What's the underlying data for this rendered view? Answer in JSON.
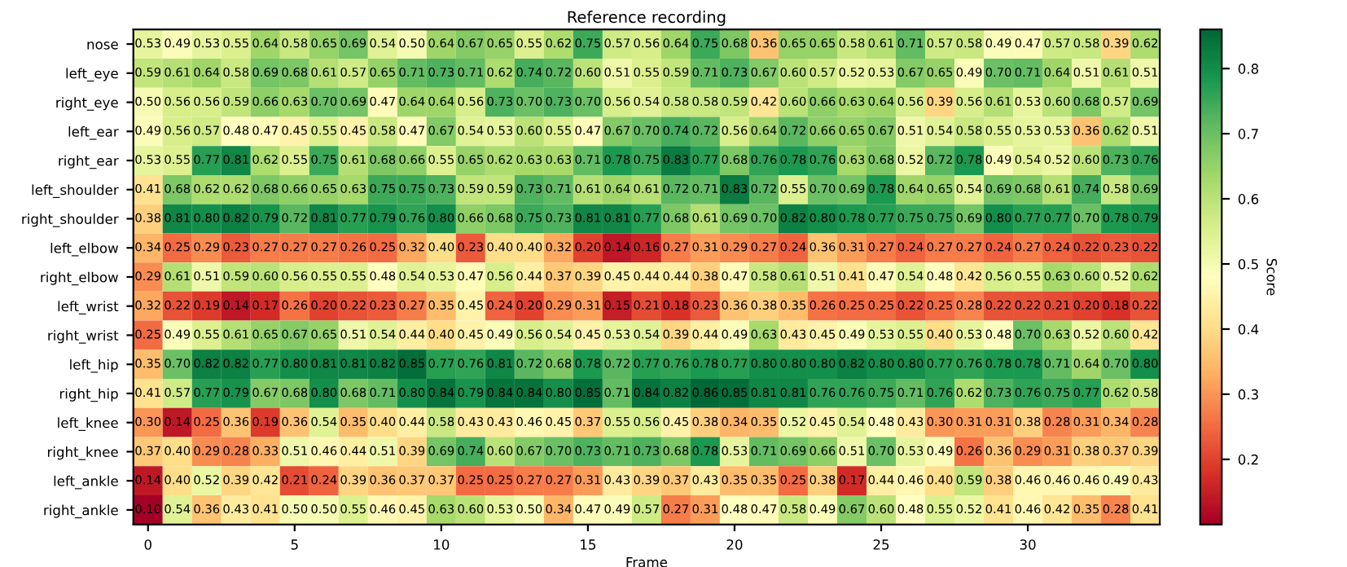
{
  "chart_data": {
    "type": "heatmap",
    "title": "Reference recording",
    "xlabel": "Frame",
    "clabel": "Score",
    "categories": [
      "0",
      null,
      null,
      null,
      null,
      "5",
      null,
      null,
      null,
      null,
      "10",
      null,
      null,
      null,
      null,
      "15",
      null,
      null,
      null,
      null,
      "20",
      null,
      null,
      null,
      null,
      "25",
      null,
      null,
      null,
      null,
      "30",
      null,
      null,
      null,
      null
    ],
    "y_categories": [
      "nose",
      "left_eye",
      "right_eye",
      "left_ear",
      "right_ear",
      "left_shoulder",
      "right_shoulder",
      "left_elbow",
      "right_elbow",
      "left_wrist",
      "right_wrist",
      "left_hip",
      "right_hip",
      "left_knee",
      "right_knee",
      "left_ankle",
      "right_ankle"
    ],
    "cells": [
      [
        0.53,
        0.49,
        0.53,
        0.55,
        0.64,
        0.58,
        0.65,
        0.69,
        0.54,
        0.5,
        0.64,
        0.67,
        0.65,
        0.55,
        0.62,
        0.75,
        0.57,
        0.56,
        0.64,
        0.75,
        0.68,
        0.36,
        0.65,
        0.65,
        0.58,
        0.61,
        0.71,
        0.57,
        0.58,
        0.49,
        0.47,
        0.57,
        0.58,
        0.39,
        0.62
      ],
      [
        0.59,
        0.61,
        0.64,
        0.58,
        0.69,
        0.68,
        0.61,
        0.57,
        0.65,
        0.71,
        0.73,
        0.71,
        0.62,
        0.74,
        0.72,
        0.6,
        0.51,
        0.55,
        0.59,
        0.71,
        0.73,
        0.67,
        0.6,
        0.57,
        0.52,
        0.53,
        0.67,
        0.65,
        0.49,
        0.7,
        0.71,
        0.64,
        0.51,
        0.61,
        0.51
      ],
      [
        0.5,
        0.56,
        0.56,
        0.59,
        0.66,
        0.63,
        0.7,
        0.69,
        0.47,
        0.64,
        0.64,
        0.56,
        0.73,
        0.7,
        0.73,
        0.7,
        0.56,
        0.54,
        0.58,
        0.58,
        0.59,
        0.42,
        0.6,
        0.66,
        0.63,
        0.64,
        0.56,
        0.39,
        0.56,
        0.61,
        0.53,
        0.6,
        0.68,
        0.57,
        0.69
      ],
      [
        0.49,
        0.56,
        0.57,
        0.48,
        0.47,
        0.45,
        0.55,
        0.45,
        0.58,
        0.47,
        0.67,
        0.54,
        0.53,
        0.6,
        0.55,
        0.47,
        0.67,
        0.7,
        0.74,
        0.72,
        0.56,
        0.64,
        0.72,
        0.66,
        0.65,
        0.67,
        0.51,
        0.54,
        0.58,
        0.55,
        0.53,
        0.53,
        0.36,
        0.62,
        0.51
      ],
      [
        0.53,
        0.55,
        0.77,
        0.81,
        0.62,
        0.55,
        0.75,
        0.61,
        0.68,
        0.66,
        0.55,
        0.65,
        0.62,
        0.63,
        0.63,
        0.71,
        0.78,
        0.75,
        0.83,
        0.77,
        0.68,
        0.76,
        0.78,
        0.76,
        0.63,
        0.68,
        0.52,
        0.72,
        0.78,
        0.49,
        0.54,
        0.52,
        0.6,
        0.73,
        0.76
      ],
      [
        0.41,
        0.68,
        0.62,
        0.62,
        0.68,
        0.66,
        0.65,
        0.63,
        0.75,
        0.75,
        0.73,
        0.59,
        0.59,
        0.73,
        0.71,
        0.61,
        0.64,
        0.61,
        0.72,
        0.71,
        0.83,
        0.72,
        0.55,
        0.7,
        0.69,
        0.78,
        0.64,
        0.65,
        0.54,
        0.69,
        0.68,
        0.61,
        0.74,
        0.58,
        0.69
      ],
      [
        0.38,
        0.81,
        0.8,
        0.82,
        0.79,
        0.72,
        0.81,
        0.77,
        0.79,
        0.76,
        0.8,
        0.66,
        0.68,
        0.75,
        0.73,
        0.81,
        0.81,
        0.77,
        0.68,
        0.61,
        0.69,
        0.7,
        0.82,
        0.8,
        0.78,
        0.77,
        0.75,
        0.75,
        0.69,
        0.8,
        0.77,
        0.77,
        0.7,
        0.78,
        0.79
      ],
      [
        0.34,
        0.25,
        0.29,
        0.23,
        0.27,
        0.27,
        0.27,
        0.26,
        0.25,
        0.32,
        0.4,
        0.23,
        0.4,
        0.4,
        0.32,
        0.2,
        0.14,
        0.16,
        0.27,
        0.31,
        0.29,
        0.27,
        0.24,
        0.36,
        0.31,
        0.27,
        0.24,
        0.27,
        0.27,
        0.24,
        0.27,
        0.24,
        0.22,
        0.23,
        0.22
      ],
      [
        0.29,
        0.61,
        0.51,
        0.59,
        0.6,
        0.56,
        0.55,
        0.55,
        0.48,
        0.54,
        0.53,
        0.47,
        0.56,
        0.44,
        0.37,
        0.39,
        0.45,
        0.44,
        0.44,
        0.38,
        0.47,
        0.58,
        0.61,
        0.51,
        0.41,
        0.47,
        0.54,
        0.48,
        0.42,
        0.56,
        0.55,
        0.63,
        0.6,
        0.52,
        0.62
      ],
      [
        0.32,
        0.22,
        0.19,
        0.14,
        0.17,
        0.26,
        0.2,
        0.22,
        0.23,
        0.27,
        0.35,
        0.45,
        0.24,
        0.2,
        0.29,
        0.31,
        0.15,
        0.21,
        0.18,
        0.23,
        0.36,
        0.38,
        0.35,
        0.26,
        0.25,
        0.25,
        0.22,
        0.25,
        0.28,
        0.22,
        0.22,
        0.21,
        0.2,
        0.18,
        0.22
      ],
      [
        0.25,
        0.49,
        0.55,
        0.61,
        0.65,
        0.67,
        0.65,
        0.51,
        0.54,
        0.44,
        0.4,
        0.45,
        0.49,
        0.56,
        0.54,
        0.45,
        0.53,
        0.54,
        0.39,
        0.44,
        0.49,
        0.63,
        0.43,
        0.45,
        0.49,
        0.53,
        0.55,
        0.4,
        0.53,
        0.48,
        0.7,
        0.63,
        0.52,
        0.6,
        0.42
      ],
      [
        0.35,
        0.7,
        0.82,
        0.82,
        0.77,
        0.8,
        0.81,
        0.81,
        0.82,
        0.85,
        0.77,
        0.76,
        0.81,
        0.72,
        0.68,
        0.78,
        0.72,
        0.77,
        0.76,
        0.78,
        0.77,
        0.8,
        0.8,
        0.8,
        0.82,
        0.8,
        0.8,
        0.77,
        0.76,
        0.78,
        0.78,
        0.71,
        0.64,
        0.7,
        0.8
      ],
      [
        0.41,
        0.57,
        0.77,
        0.79,
        0.67,
        0.68,
        0.8,
        0.68,
        0.71,
        0.8,
        0.84,
        0.79,
        0.84,
        0.84,
        0.8,
        0.85,
        0.71,
        0.84,
        0.82,
        0.86,
        0.85,
        0.81,
        0.81,
        0.76,
        0.76,
        0.75,
        0.71,
        0.76,
        0.62,
        0.73,
        0.76,
        0.75,
        0.77,
        0.62,
        0.58
      ],
      [
        0.3,
        0.14,
        0.25,
        0.36,
        0.19,
        0.36,
        0.54,
        0.35,
        0.4,
        0.44,
        0.58,
        0.43,
        0.43,
        0.46,
        0.45,
        0.37,
        0.55,
        0.56,
        0.45,
        0.38,
        0.34,
        0.35,
        0.52,
        0.45,
        0.54,
        0.48,
        0.43,
        0.3,
        0.31,
        0.31,
        0.38,
        0.28,
        0.31,
        0.34,
        0.28
      ],
      [
        0.37,
        0.4,
        0.29,
        0.28,
        0.33,
        0.51,
        0.46,
        0.44,
        0.51,
        0.39,
        0.69,
        0.74,
        0.6,
        0.67,
        0.7,
        0.73,
        0.71,
        0.73,
        0.68,
        0.78,
        0.53,
        0.71,
        0.69,
        0.66,
        0.51,
        0.7,
        0.53,
        0.49,
        0.26,
        0.36,
        0.29,
        0.31,
        0.38,
        0.37,
        0.39
      ],
      [
        0.14,
        0.4,
        0.52,
        0.39,
        0.42,
        0.21,
        0.24,
        0.39,
        0.36,
        0.37,
        0.37,
        0.25,
        0.25,
        0.27,
        0.27,
        0.31,
        0.43,
        0.39,
        0.37,
        0.43,
        0.35,
        0.35,
        0.25,
        0.38,
        0.17,
        0.44,
        0.46,
        0.4,
        0.59,
        0.38,
        0.46,
        0.46,
        0.46,
        0.49,
        0.43
      ],
      [
        0.1,
        0.54,
        0.36,
        0.43,
        0.41,
        0.5,
        0.5,
        0.55,
        0.46,
        0.45,
        0.63,
        0.6,
        0.53,
        0.5,
        0.34,
        0.47,
        0.49,
        0.57,
        0.27,
        0.31,
        0.48,
        0.47,
        0.58,
        0.49,
        0.67,
        0.6,
        0.48,
        0.55,
        0.52,
        0.41,
        0.46,
        0.42,
        0.35,
        0.28,
        0.41
      ]
    ],
    "cell_labels": [
      [
        "0.53",
        "0.49",
        "0.53",
        "0.55",
        "0.64",
        "0.58",
        "0.65",
        "0.69",
        "0.54",
        "0.50",
        "0.64",
        "0.67",
        "0.65",
        "0.55",
        "0.62",
        "0.75",
        "0.57",
        "0.56",
        "0.64",
        "0.75",
        "0.68",
        "0.36",
        "0.65",
        "0.65",
        "0.58",
        "0.61",
        "0.71",
        "0.57",
        "0.58",
        "0.49",
        "0.47",
        "0.57",
        "0.58",
        "0.39",
        "0.62"
      ],
      [
        "0.59",
        "0.61",
        "0.64",
        "0.58",
        "0.69",
        "0.68",
        "0.61",
        "0.57",
        "0.65",
        "0.71",
        "0.73",
        "0.71",
        "0.62",
        "0.74",
        "0.72",
        "0.60",
        "0.51",
        "0.55",
        "0.59",
        "0.71",
        "0.73",
        "0.67",
        "0.60",
        "0.57",
        "0.52",
        "0.53",
        "0.67",
        "0.65",
        "0.49",
        "0.70",
        "0.71",
        "0.64",
        "0.51",
        "0.61",
        "0.51"
      ],
      [
        "0.50",
        "0.56",
        "0.56",
        "0.59",
        "0.66",
        "0.63",
        "0.70",
        "0.69",
        "0.47",
        "0.64",
        "0.64",
        "0.56",
        "0.73",
        "0.70",
        "0.73",
        "0.70",
        "0.56",
        "0.54",
        "0.58",
        "0.58",
        "0.59",
        "0.42",
        "0.60",
        "0.66",
        "0.63",
        "0.64",
        "0.56",
        "0.39",
        "0.56",
        "0.61",
        "0.53",
        "0.60",
        "0.68",
        "0.57",
        "0.69"
      ],
      [
        "0.49",
        "0.56",
        "0.57",
        "0.48",
        "0.47",
        "0.45",
        "0.55",
        "0.45",
        "0.58",
        "0.47",
        "0.67",
        "0.54",
        "0.53",
        "0.60",
        "0.55",
        "0.47",
        "0.67",
        "0.70",
        "0.74",
        "0.72",
        "0.56",
        "0.64",
        "0.72",
        "0.66",
        "0.65",
        "0.67",
        "0.51",
        "0.54",
        "0.58",
        "0.55",
        "0.53",
        "0.53",
        "0.36",
        "0.62",
        "0.51"
      ],
      [
        "0.53",
        "0.55",
        "0.77",
        "0.81",
        "0.62",
        "0.55",
        "0.75",
        "0.61",
        "0.68",
        "0.66",
        "0.55",
        "0.65",
        "0.62",
        "0.63",
        "0.63",
        "0.71",
        "0.78",
        "0.75",
        "0.83",
        "0.77",
        "0.68",
        "0.76",
        "0.78",
        "0.76",
        "0.63",
        "0.68",
        "0.52",
        "0.72",
        "0.78",
        "0.49",
        "0.54",
        "0.52",
        "0.60",
        "0.73",
        "0.76"
      ],
      [
        "0.41",
        "0.68",
        "0.62",
        "0.62",
        "0.68",
        "0.66",
        "0.65",
        "0.63",
        "0.75",
        "0.75",
        "0.73",
        "0.59",
        "0.59",
        "0.73",
        "0.71",
        "0.61",
        "0.64",
        "0.61",
        "0.72",
        "0.71",
        "0.83",
        "0.72",
        "0.55",
        "0.70",
        "0.69",
        "0.78",
        "0.64",
        "0.65",
        "0.54",
        "0.69",
        "0.68",
        "0.61",
        "0.74",
        "0.58",
        "0.69"
      ],
      [
        "0.38",
        "0.81",
        "0.80",
        "0.82",
        "0.79",
        "0.72",
        "0.81",
        "0.77",
        "0.79",
        "0.76",
        "0.80",
        "0.66",
        "0.68",
        "0.75",
        "0.73",
        "0.81",
        "0.81",
        "0.77",
        "0.68",
        "0.61",
        "0.69",
        "0.70",
        "0.82",
        "0.80",
        "0.78",
        "0.77",
        "0.75",
        "0.75",
        "0.69",
        "0.80",
        "0.77",
        "0.77",
        "0.70",
        "0.78",
        "0.79"
      ],
      [
        "0.34",
        "0.25",
        "0.29",
        "0.23",
        "0.27",
        "0.27",
        "0.27",
        "0.26",
        "0.25",
        "0.32",
        "0.40",
        "0.23",
        "0.40",
        "0.40",
        "0.32",
        "0.20",
        "0.14",
        "0.16",
        "0.27",
        "0.31",
        "0.29",
        "0.27",
        "0.24",
        "0.36",
        "0.31",
        "0.27",
        "0.24",
        "0.27",
        "0.27",
        "0.24",
        "0.27",
        "0.24",
        "0.22",
        "0.23",
        "0.22"
      ],
      [
        "0.29",
        "0.61",
        "0.51",
        "0.59",
        "0.60",
        "0.56",
        "0.55",
        "0.55",
        "0.48",
        "0.54",
        "0.53",
        "0.47",
        "0.56",
        "0.44",
        "0.37",
        "0.39",
        "0.45",
        "0.44",
        "0.44",
        "0.38",
        "0.47",
        "0.58",
        "0.61",
        "0.51",
        "0.41",
        "0.47",
        "0.54",
        "0.48",
        "0.42",
        "0.56",
        "0.55",
        "0.63",
        "0.60",
        "0.52",
        "0.62"
      ],
      [
        "0.32",
        "0.22",
        "0.19",
        "0.14",
        "0.17",
        "0.26",
        "0.20",
        "0.22",
        "0.23",
        "0.27",
        "0.35",
        "0.45",
        "0.24",
        "0.20",
        "0.29",
        "0.31",
        "0.15",
        "0.21",
        "0.18",
        "0.23",
        "0.36",
        "0.38",
        "0.35",
        "0.26",
        "0.25",
        "0.25",
        "0.22",
        "0.25",
        "0.28",
        "0.22",
        "0.22",
        "0.21",
        "0.20",
        "0.18",
        "0.22"
      ],
      [
        "0.25",
        "0.49",
        "0.55",
        "0.61",
        "0.65",
        "0.67",
        "0.65",
        "0.51",
        "0.54",
        "0.44",
        "0.40",
        "0.45",
        "0.49",
        "0.56",
        "0.54",
        "0.45",
        "0.53",
        "0.54",
        "0.39",
        "0.44",
        "0.49",
        "0.63",
        "0.43",
        "0.45",
        "0.49",
        "0.53",
        "0.55",
        "0.40",
        "0.53",
        "0.48",
        "0.70",
        "0.63",
        "0.52",
        "0.60",
        "0.42"
      ],
      [
        "0.35",
        "0.70",
        "0.82",
        "0.82",
        "0.77",
        "0.80",
        "0.81",
        "0.81",
        "0.82",
        "0.85",
        "0.77",
        "0.76",
        "0.81",
        "0.72",
        "0.68",
        "0.78",
        "0.72",
        "0.77",
        "0.76",
        "0.78",
        "0.77",
        "0.80",
        "0.80",
        "0.80",
        "0.82",
        "0.80",
        "0.80",
        "0.77",
        "0.76",
        "0.78",
        "0.78",
        "0.71",
        "0.64",
        "0.70",
        "0.80"
      ],
      [
        "0.41",
        "0.57",
        "0.77",
        "0.79",
        "0.67",
        "0.68",
        "0.80",
        "0.68",
        "0.71",
        "0.80",
        "0.84",
        "0.79",
        "0.84",
        "0.84",
        "0.80",
        "0.85",
        "0.71",
        "0.84",
        "0.82",
        "0.86",
        "0.85",
        "0.81",
        "0.81",
        "0.76",
        "0.76",
        "0.75",
        "0.71",
        "0.76",
        "0.62",
        "0.73",
        "0.76",
        "0.75",
        "0.77",
        "0.62",
        "0.58"
      ],
      [
        "0.30",
        "0.14",
        "0.25",
        "0.36",
        "0.19",
        "0.36",
        "0.54",
        "0.35",
        "0.40",
        "0.44",
        "0.58",
        "0.43",
        "0.43",
        "0.46",
        "0.45",
        "0.37",
        "0.55",
        "0.56",
        "0.45",
        "0.38",
        "0.34",
        "0.35",
        "0.52",
        "0.45",
        "0.54",
        "0.48",
        "0.43",
        "0.30",
        "0.31",
        "0.31",
        "0.38",
        "0.28",
        "0.31",
        "0.34",
        "0.28"
      ],
      [
        "0.37",
        "0.40",
        "0.29",
        "0.28",
        "0.33",
        "0.51",
        "0.46",
        "0.44",
        "0.51",
        "0.39",
        "0.69",
        "0.74",
        "0.60",
        "0.67",
        "0.70",
        "0.73",
        "0.71",
        "0.73",
        "0.68",
        "0.78",
        "0.53",
        "0.71",
        "0.69",
        "0.66",
        "0.51",
        "0.70",
        "0.53",
        "0.49",
        "0.26",
        "0.36",
        "0.29",
        "0.31",
        "0.38",
        "0.37",
        "0.39"
      ],
      [
        "0.14",
        "0.40",
        "0.52",
        "0.39",
        "0.42",
        "0.21",
        "0.24",
        "0.39",
        "0.36",
        "0.37",
        "0.37",
        "0.25",
        "0.25",
        "0.27",
        "0.27",
        "0.31",
        "0.43",
        "0.39",
        "0.37",
        "0.43",
        "0.35",
        "0.35",
        "0.25",
        "0.38",
        "0.17",
        "0.44",
        "0.46",
        "0.40",
        "0.59",
        "0.38",
        "0.46",
        "0.46",
        "0.46",
        "0.49",
        "0.43"
      ],
      [
        "0.10",
        "0.54",
        "0.36",
        "0.43",
        "0.41",
        "0.50",
        "0.50",
        "0.55",
        "0.46",
        "0.45",
        "0.63",
        "0.60",
        "0.53",
        "0.50",
        "0.34",
        "0.47",
        "0.49",
        "0.57",
        "0.27",
        "0.31",
        "0.48",
        "0.47",
        "0.58",
        "0.49",
        "0.67",
        "0.60",
        "0.48",
        "0.55",
        "0.52",
        "0.41",
        "0.46",
        "0.42",
        "0.35",
        "0.28",
        "0.41"
      ]
    ],
    "clim": [
      0.1,
      0.86
    ],
    "cticks": [
      0.2,
      0.3,
      0.4,
      0.5,
      0.6,
      0.7,
      0.8
    ]
  }
}
